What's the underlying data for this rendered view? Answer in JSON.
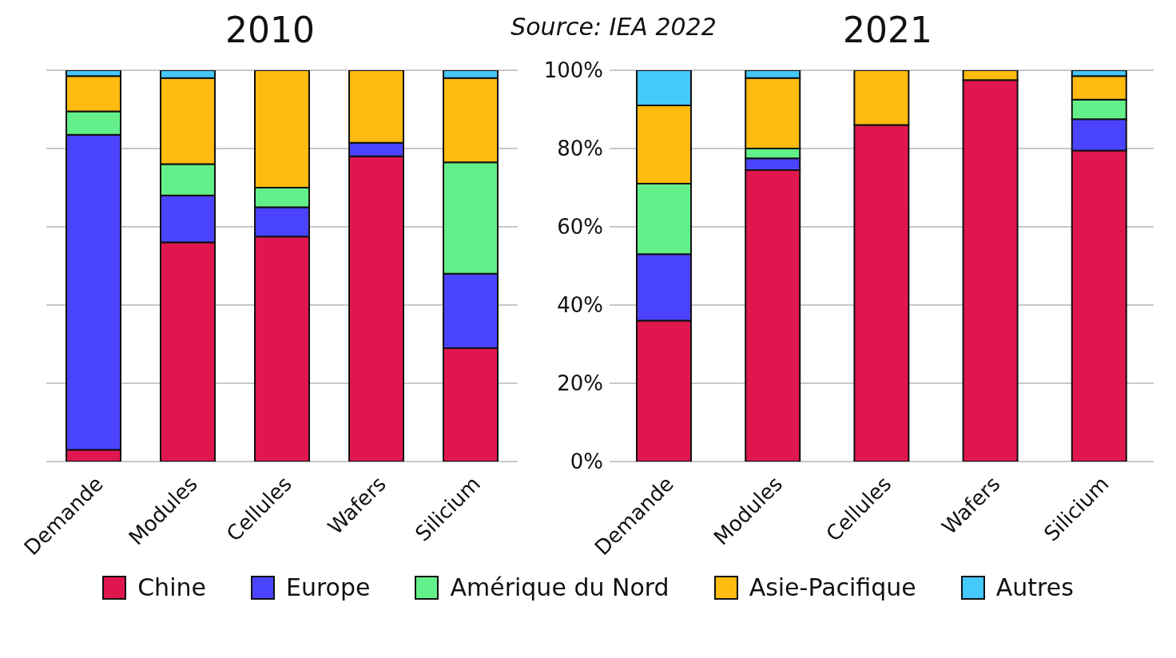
{
  "chart_data": [
    {
      "type": "bar",
      "title": "2010",
      "stacked": true,
      "categories": [
        "Demande",
        "Modules",
        "Cellules",
        "Wafers",
        "Silicium"
      ],
      "ylim": [
        0,
        100
      ],
      "yticks": [
        {
          "value": 0,
          "label": null
        },
        {
          "value": 20,
          "label": null
        },
        {
          "value": 40,
          "label": null
        },
        {
          "value": 60,
          "label": null
        },
        {
          "value": 80,
          "label": null
        },
        {
          "value": 100,
          "label": null
        }
      ],
      "grid": "y",
      "tick_labels": "x",
      "legend": "bottom",
      "annotations": [
        "Source: IEA 2022"
      ],
      "series": [
        {
          "name": "Chine",
          "color": "#e0174f",
          "values": [
            3,
            56,
            57.5,
            78,
            29
          ]
        },
        {
          "name": "Europe",
          "color": "#4b44ff",
          "values": [
            80.5,
            12,
            7.5,
            3.5,
            19
          ]
        },
        {
          "name": "Amérique du Nord",
          "color": "#63f08a",
          "values": [
            6,
            8,
            5,
            0,
            28.5
          ]
        },
        {
          "name": "Asie-Pacifique",
          "color": "#ffbb0f",
          "values": [
            9,
            22,
            30,
            18.5,
            21.5
          ]
        },
        {
          "name": "Autres",
          "color": "#45c8fa",
          "values": [
            1.5,
            2,
            0,
            0,
            2
          ]
        }
      ]
    },
    {
      "type": "bar",
      "title": "2021",
      "stacked": true,
      "categories": [
        "Demande",
        "Modules",
        "Cellules",
        "Wafers",
        "Silicium"
      ],
      "ylim": [
        0,
        100
      ],
      "yticks": [
        {
          "value": 0,
          "label": "0%"
        },
        {
          "value": 20,
          "label": "20%"
        },
        {
          "value": 40,
          "label": "40%"
        },
        {
          "value": 60,
          "label": "60%"
        },
        {
          "value": 80,
          "label": "80%"
        },
        {
          "value": 100,
          "label": "100%"
        }
      ],
      "grid": "y",
      "series": [
        {
          "color": "#e0174f",
          "values": [
            36,
            74.5,
            86,
            97.5,
            79.5
          ]
        },
        {
          "color": "#4b44ff",
          "values": [
            17,
            3,
            0,
            0,
            8
          ]
        },
        {
          "color": "#63f08a",
          "values": [
            18,
            2.5,
            0,
            0,
            5
          ]
        },
        {
          "color": "#ffbb0f",
          "values": [
            20,
            18,
            14,
            2.5,
            6
          ]
        },
        {
          "color": "#45c8fa",
          "values": [
            9,
            2,
            0,
            0,
            1.5
          ]
        }
      ]
    }
  ]
}
